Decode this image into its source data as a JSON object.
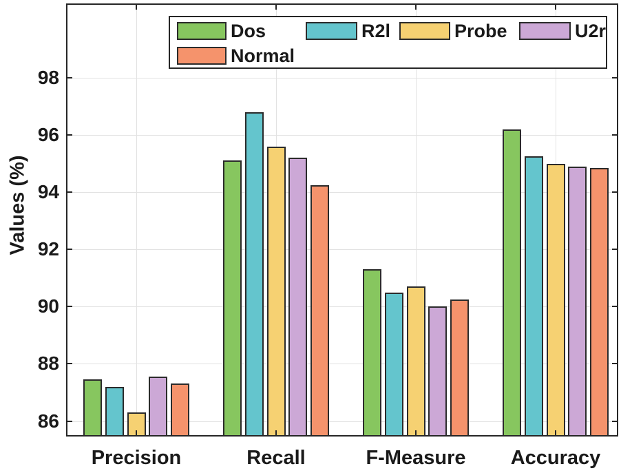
{
  "chart_data": {
    "type": "bar",
    "title": "",
    "xlabel": "",
    "ylabel": "Values (%)",
    "categories": [
      "Precision",
      "Recall",
      "F-Measure",
      "Accuracy"
    ],
    "series": [
      {
        "name": "Dos",
        "color": "#87C65F",
        "values": [
          87.45,
          95.1,
          91.3,
          96.2
        ]
      },
      {
        "name": "R2l",
        "color": "#64C5CD",
        "values": [
          87.2,
          96.8,
          90.5,
          95.25
        ]
      },
      {
        "name": "Probe",
        "color": "#F6D172",
        "values": [
          86.3,
          95.6,
          90.7,
          95.0
        ]
      },
      {
        "name": "U2r",
        "color": "#CCA8D6",
        "values": [
          87.55,
          95.2,
          90.0,
          94.9
        ]
      },
      {
        "name": "Normal",
        "color": "#F5936C",
        "values": [
          87.3,
          94.25,
          90.25,
          94.85
        ]
      }
    ],
    "y_ticks": [
      86,
      88,
      90,
      92,
      94,
      96,
      98
    ],
    "ylim": [
      85.45,
      100.6
    ],
    "grid": true,
    "legend_position": "top-inside",
    "bar_edge_color": "#2b2b2b",
    "axis_color": "#262626",
    "grid_color": "#e2e2e2",
    "text_color": "#1a1a1a",
    "background_color": "#ffffff"
  }
}
